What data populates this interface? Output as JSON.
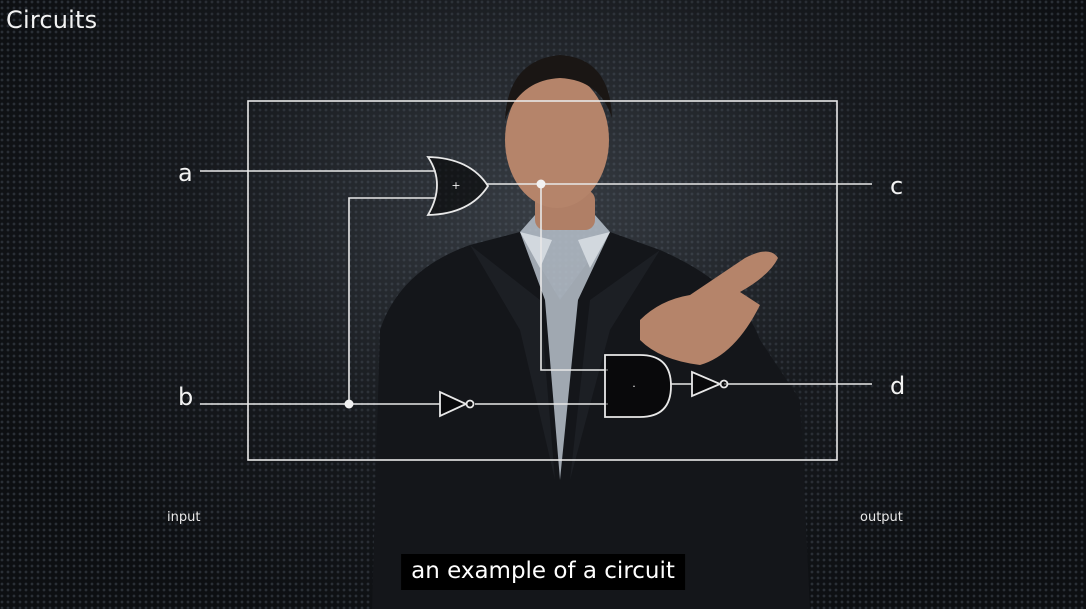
{
  "slide": {
    "title": "Circuits"
  },
  "diagram": {
    "inputs": [
      "a",
      "b"
    ],
    "outputs": [
      "c",
      "d"
    ],
    "or_gate_symbol": "+",
    "and_gate_symbol": "·",
    "input_caption": "input",
    "output_caption": "output"
  },
  "subtitle": {
    "text": "an example of a circuit"
  },
  "colors": {
    "background": "#0d0f12",
    "lines": "#e8e8e8",
    "caption_bg": "#000000",
    "caption_text": "#ffffff"
  }
}
